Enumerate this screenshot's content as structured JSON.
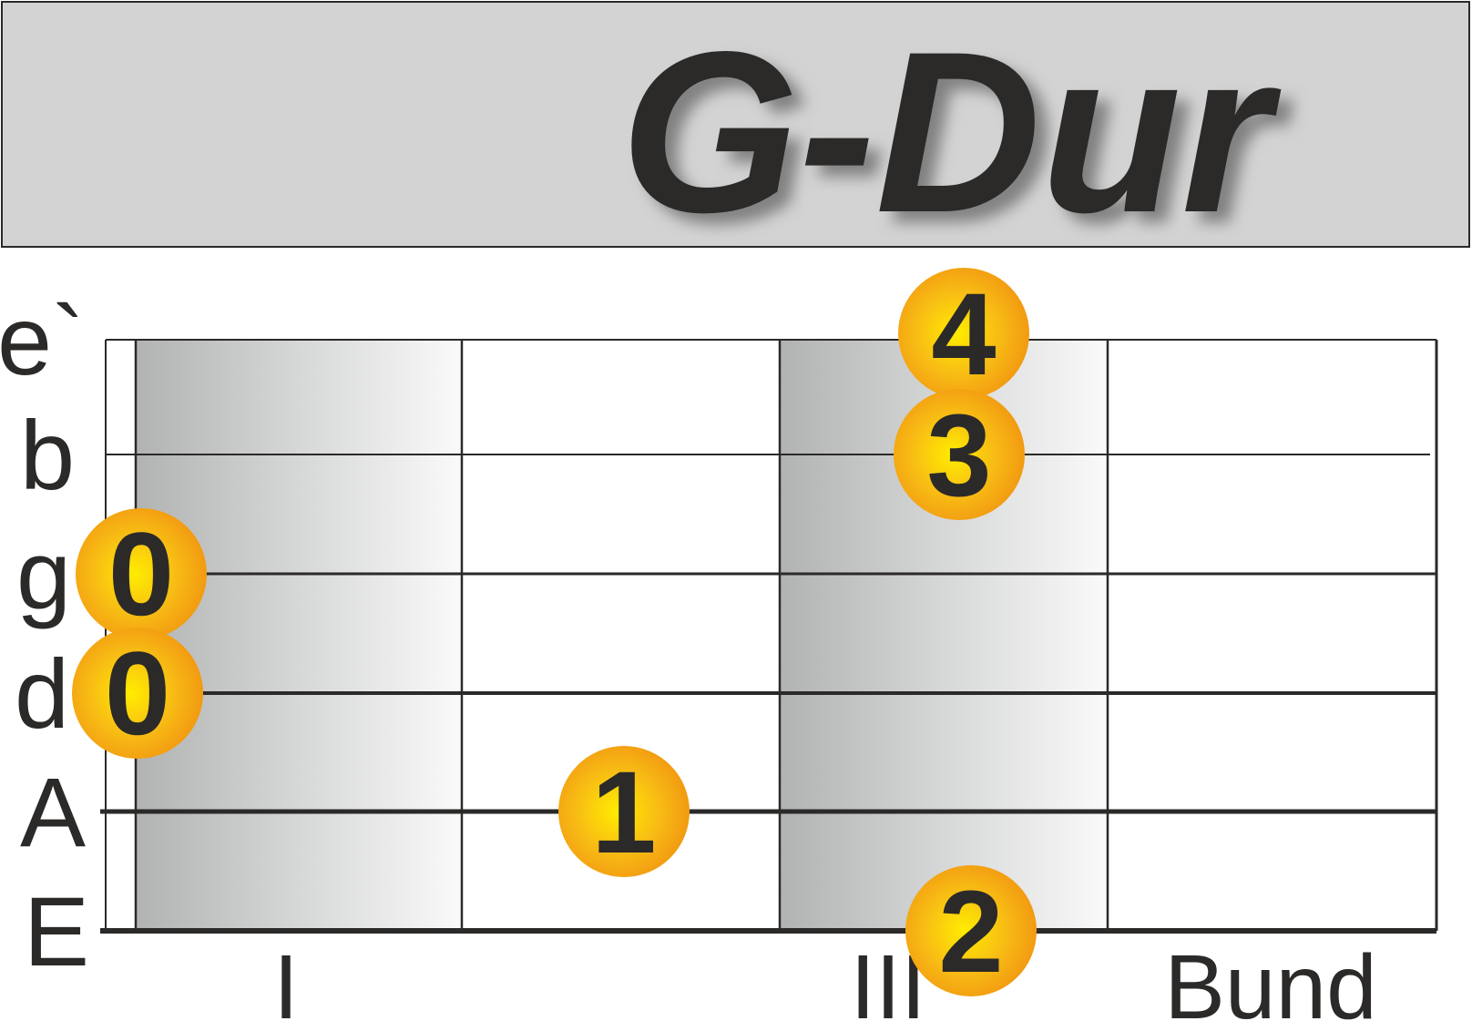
{
  "title": "G-Dur",
  "colors": {
    "header_bg": "#d3d3d3",
    "line": "#2b2a29",
    "dot_center": "#ffec00",
    "dot_edge": "#f39c12",
    "shade_dark": "#b1b3b3",
    "shade_light": "#fafafa"
  },
  "strings": [
    "e`",
    "b",
    "g",
    "d",
    "A",
    "E"
  ],
  "fret_labels": [
    "I",
    "III",
    "Bund"
  ],
  "shaded_frets": [
    1,
    3
  ],
  "fingers": [
    {
      "string": "e`",
      "fret": 3,
      "label": "4"
    },
    {
      "string": "b",
      "fret": 3,
      "label": "3"
    },
    {
      "string": "g",
      "fret": 0,
      "label": "0"
    },
    {
      "string": "d",
      "fret": 0,
      "label": "0"
    },
    {
      "string": "A",
      "fret": 2,
      "label": "1"
    },
    {
      "string": "E",
      "fret": 3,
      "label": "2"
    }
  ]
}
